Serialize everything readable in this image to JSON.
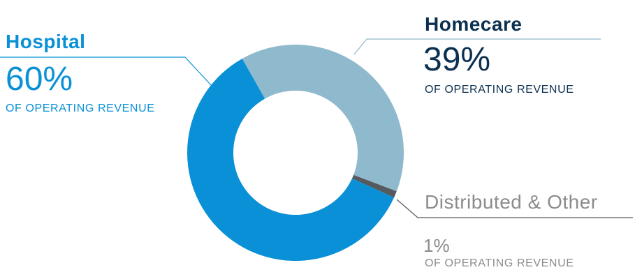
{
  "chart_data": {
    "type": "pie",
    "categories": [
      "Hospital",
      "Homecare",
      "Distributed & Other"
    ],
    "values": [
      60,
      39,
      1
    ],
    "value_labels": [
      "60%",
      "39%",
      "1%"
    ],
    "caption": "OF OPERATING REVENUE",
    "colors": [
      "#0990d6",
      "#8fb9cc",
      "#555a5e"
    ],
    "legend": "none",
    "donut": true
  }
}
